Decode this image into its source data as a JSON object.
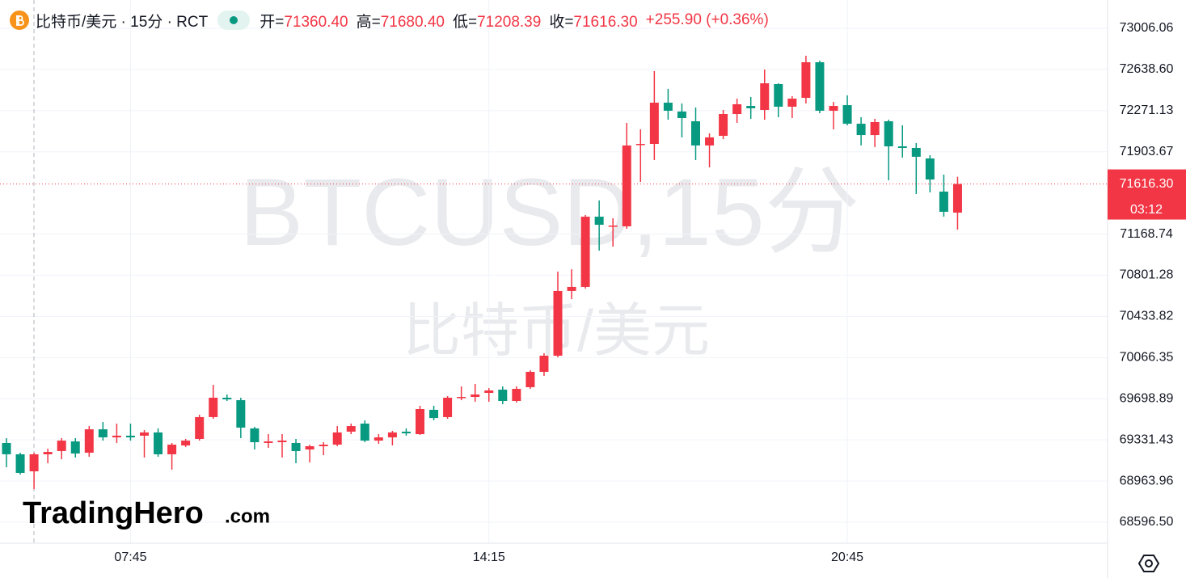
{
  "chart_data": {
    "type": "candlestick",
    "categories": [
      null,
      null,
      null,
      null,
      null,
      null,
      null,
      null,
      null,
      "07:45",
      null,
      null,
      null,
      null,
      null,
      null,
      null,
      null,
      null,
      null,
      null,
      null,
      null,
      null,
      null,
      null,
      null,
      null,
      null,
      null,
      null,
      null,
      null,
      null,
      null,
      "14:15",
      null,
      null,
      null,
      null,
      null,
      null,
      null,
      null,
      null,
      null,
      null,
      null,
      null,
      null,
      null,
      null,
      null,
      null,
      null,
      null,
      null,
      null,
      null,
      null,
      null,
      "20:45",
      null,
      null,
      null,
      null,
      null,
      null,
      null,
      null
    ],
    "open": [
      69304,
      69203,
      69051,
      69203,
      69232,
      69318,
      69217,
      69426,
      69354,
      69369,
      69369,
      69398,
      69203,
      69282,
      69340,
      69535,
      69708,
      69686,
      69434,
      69304,
      69311,
      69304,
      69246,
      69275,
      69289,
      69405,
      69477,
      69325,
      69354,
      69405,
      69383,
      69600,
      69535,
      69708,
      69715,
      69751,
      69780,
      69679,
      69802,
      69939,
      70083,
      70661,
      70697,
      71324,
      71238,
      71238,
      71967,
      71974,
      72342,
      72263,
      72176,
      71960,
      72046,
      72241,
      72313,
      72277,
      72508,
      72306,
      72385,
      72703,
      72270,
      72320,
      72154,
      72053,
      72176,
      71952,
      71938,
      71844,
      71548,
      71360.4
    ],
    "high": [
      69347,
      69217,
      69217,
      69253,
      69347,
      69347,
      69455,
      69491,
      69477,
      69477,
      69419,
      69434,
      69304,
      69340,
      69556,
      69823,
      69737,
      69708,
      69448,
      69383,
      69383,
      69340,
      69289,
      69311,
      69455,
      69477,
      69506,
      69383,
      69412,
      69434,
      69636,
      69636,
      69722,
      69809,
      69831,
      69794,
      69809,
      69809,
      69953,
      70105,
      70834,
      70855,
      71339,
      71469,
      71310,
      72162,
      72104,
      72624,
      72465,
      72335,
      72299,
      72068,
      72277,
      72378,
      72393,
      72638,
      72515,
      72400,
      72761,
      72717,
      72349,
      72407,
      72212,
      72198,
      72190,
      72140,
      71981,
      71873,
      71700,
      71680.4
    ],
    "low": [
      69087,
      69022,
      68892,
      69123,
      69159,
      69174,
      69181,
      69325,
      69304,
      69325,
      69174,
      69181,
      69066,
      69268,
      69325,
      69520,
      69679,
      69347,
      69246,
      69260,
      69174,
      69123,
      69130,
      69195,
      69275,
      69383,
      69311,
      69296,
      69282,
      69369,
      69376,
      69506,
      69520,
      69686,
      69672,
      69672,
      69650,
      69665,
      69787,
      69903,
      70069,
      70588,
      70682,
      71021,
      71057,
      71216,
      71635,
      71830,
      72190,
      72032,
      71830,
      71765,
      72017,
      72162,
      72198,
      72190,
      72212,
      72205,
      72335,
      72248,
      72104,
      72140,
      71960,
      71945,
      71649,
      71851,
      71527,
      71541,
      71324,
      71208.39
    ],
    "close": [
      69203,
      69037,
      69203,
      69224,
      69325,
      69210,
      69426,
      69354,
      69369,
      69354,
      69398,
      69203,
      69289,
      69325,
      69535,
      69708,
      69693,
      69441,
      69311,
      69318,
      69325,
      69232,
      69275,
      69289,
      69398,
      69455,
      69325,
      69354,
      69398,
      69390,
      69607,
      69527,
      69708,
      69715,
      69737,
      69773,
      69679,
      69787,
      69939,
      70083,
      70661,
      70697,
      71324,
      71252,
      71245,
      71960,
      71974,
      72342,
      72270,
      72205,
      71960,
      72032,
      72241,
      72328,
      72292,
      72515,
      72306,
      72378,
      72703,
      72270,
      72313,
      72154,
      72053,
      72169,
      71952,
      71938,
      71859,
      71656,
      71368,
      71616.3
    ],
    "up_color": "#f23645",
    "down_color": "#089981",
    "ylim": [
      68408.85,
      73258.65
    ],
    "yticks": [
      {
        "value": 73006.06,
        "label": "73006.06"
      },
      {
        "value": 72638.6,
        "label": "72638.60"
      },
      {
        "value": 72271.13,
        "label": "72271.13"
      },
      {
        "value": 71903.67,
        "label": "71903.67"
      },
      {
        "value": 71168.74,
        "label": "71168.74"
      },
      {
        "value": 70801.28,
        "label": "70801.28"
      },
      {
        "value": 70433.82,
        "label": "70433.82"
      },
      {
        "value": 70066.35,
        "label": "70066.35"
      },
      {
        "value": 69698.89,
        "label": "69698.89"
      },
      {
        "value": 69331.43,
        "label": "69331.43"
      },
      {
        "value": 68963.96,
        "label": "68963.96"
      },
      {
        "value": 68596.5,
        "label": "68596.50"
      }
    ],
    "grid": true,
    "last_price_label": "71616.30",
    "countdown": "03:12",
    "watermark": "BTCUSD,15分",
    "watermark_sub": "比特币/美元"
  },
  "header": {
    "symbol": "比特币/美元 · 15分 · RCT",
    "ohlc": [
      {
        "label": "开=",
        "value": "71360.40"
      },
      {
        "label": "高=",
        "value": "71680.40"
      },
      {
        "label": "低=",
        "value": "71208.39"
      },
      {
        "label": "收=",
        "value": "71616.30"
      }
    ],
    "change": "+255.90 (+0.36%)"
  },
  "branding": {
    "name": "TradingHero",
    "suffix": ".com"
  }
}
